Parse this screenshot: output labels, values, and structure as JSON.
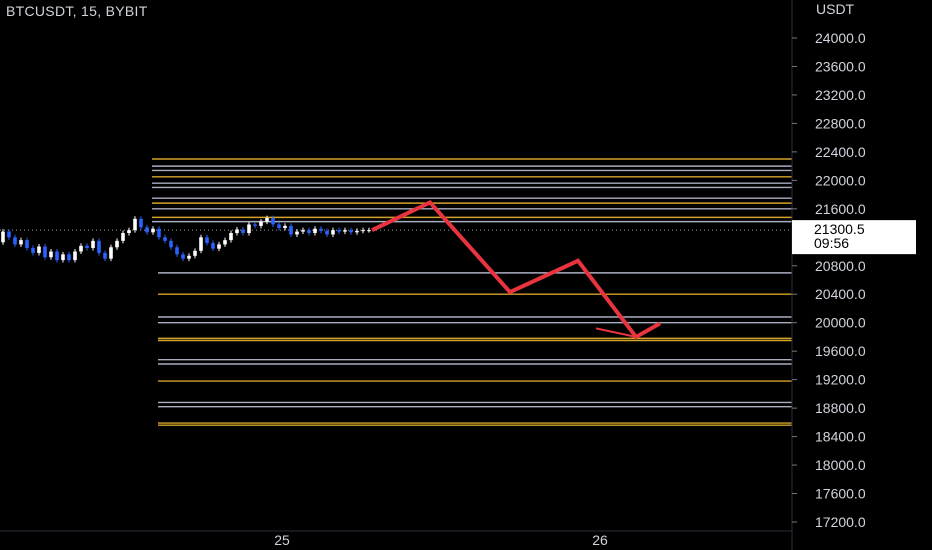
{
  "header": {
    "symbol_line": "BTCUSDT, 15, BYBIT"
  },
  "price_axis": {
    "currency": "USDT",
    "ticks": [
      "24000.0",
      "23600.0",
      "23200.0",
      "22800.0",
      "22400.0",
      "22000.0",
      "21600.0",
      "20800.0",
      "20400.0",
      "20000.0",
      "19600.0",
      "19200.0",
      "18800.0",
      "18400.0",
      "18000.0",
      "17600.0",
      "17200.0"
    ]
  },
  "time_axis": {
    "ticks": [
      "25",
      "26"
    ]
  },
  "last_price": {
    "value": "21300.5",
    "countdown": "09:56"
  },
  "colors": {
    "background": "#000000",
    "candle_up": "#ffffff",
    "candle_down": "#2962ff",
    "level_gold": "#d4a32a",
    "level_silver": "#a9aec0",
    "projection": "#e8343f",
    "text": "#d1d4dc"
  },
  "chart_data": {
    "type": "candlestick",
    "symbol": "BTCUSDT",
    "interval": "15",
    "exchange": "BYBIT",
    "ylim": [
      17000,
      24200
    ],
    "last_price": 21300.5,
    "price_path": [
      [
        0,
        21130
      ],
      [
        6,
        21280
      ],
      [
        12,
        21200
      ],
      [
        18,
        21100
      ],
      [
        24,
        21160
      ],
      [
        30,
        21050
      ],
      [
        36,
        20980
      ],
      [
        42,
        21070
      ],
      [
        48,
        20920
      ],
      [
        54,
        21000
      ],
      [
        60,
        20880
      ],
      [
        66,
        20960
      ],
      [
        72,
        20880
      ],
      [
        78,
        21000
      ],
      [
        84,
        21080
      ],
      [
        90,
        21050
      ],
      [
        96,
        21150
      ],
      [
        102,
        20980
      ],
      [
        108,
        20900
      ],
      [
        114,
        21060
      ],
      [
        120,
        21150
      ],
      [
        126,
        21260
      ],
      [
        132,
        21300
      ],
      [
        138,
        21460
      ],
      [
        144,
        21340
      ],
      [
        150,
        21270
      ],
      [
        156,
        21320
      ],
      [
        162,
        21200
      ],
      [
        168,
        21150
      ],
      [
        174,
        21060
      ],
      [
        180,
        20960
      ],
      [
        186,
        20900
      ],
      [
        192,
        20940
      ],
      [
        198,
        21010
      ],
      [
        204,
        21200
      ],
      [
        210,
        21120
      ],
      [
        216,
        21040
      ],
      [
        222,
        21100
      ],
      [
        228,
        21160
      ],
      [
        234,
        21260
      ],
      [
        240,
        21310
      ],
      [
        246,
        21260
      ],
      [
        252,
        21380
      ],
      [
        258,
        21360
      ],
      [
        264,
        21420
      ],
      [
        270,
        21470
      ],
      [
        276,
        21380
      ],
      [
        282,
        21330
      ],
      [
        288,
        21360
      ],
      [
        294,
        21240
      ],
      [
        300,
        21280
      ],
      [
        306,
        21300
      ],
      [
        312,
        21260
      ],
      [
        318,
        21320
      ],
      [
        324,
        21290
      ],
      [
        330,
        21240
      ],
      [
        336,
        21300
      ],
      [
        342,
        21280
      ],
      [
        348,
        21300
      ],
      [
        354,
        21270
      ],
      [
        360,
        21290
      ],
      [
        366,
        21300
      ],
      [
        372,
        21300
      ]
    ],
    "horizontal_levels": [
      {
        "price": 22300,
        "color": "gold"
      },
      {
        "price": 22200,
        "color": "silver"
      },
      {
        "price": 22140,
        "color": "silver"
      },
      {
        "price": 22050,
        "color": "gold"
      },
      {
        "price": 21960,
        "color": "silver"
      },
      {
        "price": 21900,
        "color": "silver"
      },
      {
        "price": 21750,
        "color": "silver"
      },
      {
        "price": 21680,
        "color": "gold"
      },
      {
        "price": 21600,
        "color": "silver"
      },
      {
        "price": 21480,
        "color": "gold"
      },
      {
        "price": 21420,
        "color": "silver"
      },
      {
        "price": 20700,
        "color": "silver"
      },
      {
        "price": 20400,
        "color": "gold"
      },
      {
        "price": 20080,
        "color": "silver"
      },
      {
        "price": 20000,
        "color": "silver"
      },
      {
        "price": 19780,
        "color": "gold"
      },
      {
        "price": 19750,
        "color": "gold"
      },
      {
        "price": 19480,
        "color": "silver"
      },
      {
        "price": 19420,
        "color": "silver"
      },
      {
        "price": 19180,
        "color": "gold"
      },
      {
        "price": 18880,
        "color": "silver"
      },
      {
        "price": 18820,
        "color": "silver"
      },
      {
        "price": 18590,
        "color": "gold"
      },
      {
        "price": 18560,
        "color": "gold"
      }
    ],
    "projection_path": [
      [
        372,
        21300
      ],
      [
        430,
        21690
      ],
      [
        510,
        20430
      ],
      [
        578,
        20870
      ],
      [
        636,
        19800
      ],
      [
        660,
        19990
      ]
    ],
    "projection_spur": [
      [
        596,
        19920
      ],
      [
        636,
        19800
      ]
    ],
    "x_ticks": [
      {
        "label": "25",
        "x": 282
      },
      {
        "label": "26",
        "x": 600
      }
    ]
  }
}
